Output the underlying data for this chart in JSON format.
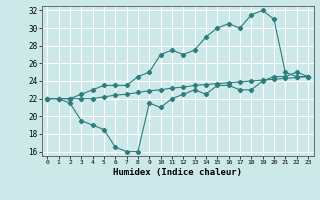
{
  "xlabel": "Humidex (Indice chaleur)",
  "bg_color": "#cce8e8",
  "line_color": "#2d7d7d",
  "grid_color": "#ffffff",
  "xlim": [
    -0.5,
    23.5
  ],
  "ylim": [
    15.5,
    32.5
  ],
  "yticks": [
    16,
    18,
    20,
    22,
    24,
    26,
    28,
    30,
    32
  ],
  "xticks": [
    0,
    1,
    2,
    3,
    4,
    5,
    6,
    7,
    8,
    9,
    10,
    11,
    12,
    13,
    14,
    15,
    16,
    17,
    18,
    19,
    20,
    21,
    22,
    23
  ],
  "line1_x": [
    0,
    1,
    2,
    3,
    4,
    5,
    6,
    7,
    8,
    9,
    10,
    11,
    12,
    13,
    14,
    15,
    16,
    17,
    18,
    19,
    20,
    21,
    22,
    23
  ],
  "line1_y": [
    22.0,
    22.0,
    21.5,
    19.5,
    19.0,
    18.5,
    16.5,
    16.0,
    16.0,
    21.5,
    21.0,
    22.0,
    22.5,
    23.0,
    22.5,
    23.5,
    23.5,
    23.0,
    23.0,
    24.0,
    24.5,
    24.5,
    25.0,
    24.5
  ],
  "line2_x": [
    0,
    1,
    2,
    3,
    4,
    5,
    6,
    7,
    8,
    9,
    10,
    11,
    12,
    13,
    14,
    15,
    16,
    17,
    18,
    19,
    20,
    21,
    22,
    23
  ],
  "line2_y": [
    22.0,
    22.0,
    22.0,
    22.5,
    23.0,
    23.5,
    23.5,
    23.5,
    24.5,
    25.0,
    27.0,
    27.5,
    27.0,
    27.5,
    29.0,
    30.0,
    30.5,
    30.0,
    31.5,
    32.0,
    31.0,
    25.0,
    24.5,
    24.5
  ],
  "line3_x": [
    0,
    1,
    2,
    3,
    4,
    5,
    6,
    7,
    8,
    9,
    10,
    11,
    12,
    13,
    14,
    15,
    16,
    17,
    18,
    19,
    20,
    21,
    22,
    23
  ],
  "line3_y": [
    22.0,
    22.0,
    22.0,
    22.0,
    22.0,
    22.2,
    22.4,
    22.5,
    22.7,
    22.9,
    23.0,
    23.2,
    23.3,
    23.5,
    23.6,
    23.7,
    23.8,
    23.9,
    24.0,
    24.1,
    24.2,
    24.3,
    24.4,
    24.5
  ],
  "figsize": [
    3.2,
    2.0
  ],
  "dpi": 100
}
